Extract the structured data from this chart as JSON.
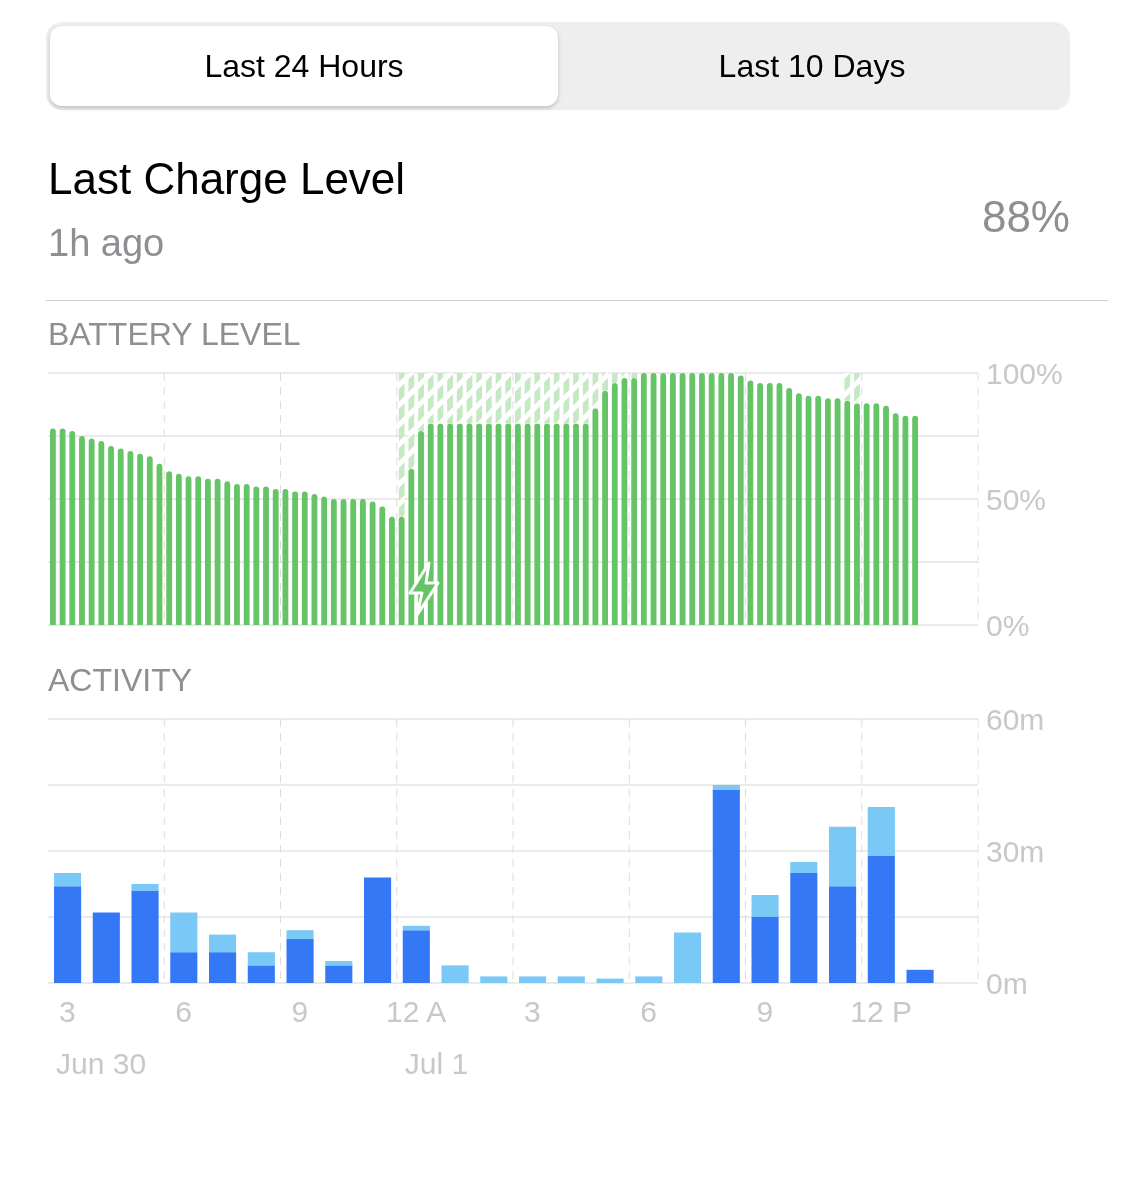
{
  "chart_data": [
    {
      "type": "other",
      "title": "Last Charge Level",
      "subtitle": "1h ago",
      "annotations": [
        "Last 24 Hours",
        "Last 10 Days",
        "88%"
      ]
    },
    {
      "type": "bar",
      "title": "BATTERY LEVEL",
      "stacked": true,
      "categories": [
        null,
        null,
        null,
        null,
        null,
        null,
        null,
        null,
        null,
        null,
        null,
        null,
        null,
        null,
        null,
        null,
        null,
        null,
        null,
        null,
        null,
        null,
        null,
        null,
        null,
        null,
        null,
        null,
        null,
        null,
        null,
        null,
        null,
        null,
        null,
        null,
        null,
        null,
        null,
        null,
        null,
        null,
        null,
        null,
        null,
        null,
        null,
        null,
        null,
        null,
        null,
        null,
        null,
        null,
        null,
        null,
        null,
        null,
        null,
        null,
        null,
        null,
        null,
        null,
        null,
        null,
        null,
        null,
        null,
        null,
        null,
        null,
        null,
        null,
        null,
        null,
        null,
        null,
        null,
        null,
        null,
        null,
        null,
        null,
        null,
        null,
        null,
        null,
        null,
        null,
        null,
        null,
        null,
        null,
        null,
        null
      ],
      "series": [
        {
          "color": "#65c466",
          "values": [
            78,
            78,
            77,
            75,
            74,
            73,
            71,
            70,
            69,
            68,
            67,
            64,
            61,
            60,
            59,
            59,
            58,
            58,
            57,
            56,
            56,
            55,
            55,
            54,
            54,
            53,
            53,
            52,
            51,
            50,
            50,
            50,
            50,
            49,
            47,
            43,
            43,
            62,
            77,
            80,
            80,
            80,
            80,
            80,
            80,
            80,
            80,
            80,
            80,
            80,
            80,
            80,
            80,
            80,
            80,
            80,
            86,
            93,
            96,
            98,
            98,
            100,
            100,
            100,
            100,
            100,
            100,
            100,
            100,
            100,
            100,
            99,
            97,
            96,
            96,
            96,
            94,
            92,
            91,
            91,
            90,
            90,
            89,
            88,
            88,
            88,
            87,
            84,
            83,
            83,
            null,
            null,
            null,
            null,
            null,
            null
          ]
        },
        {
          "color": "#c6e8c2",
          "values": [
            null,
            null,
            null,
            null,
            null,
            null,
            null,
            null,
            null,
            null,
            null,
            null,
            null,
            null,
            null,
            null,
            null,
            null,
            null,
            null,
            null,
            null,
            null,
            null,
            null,
            null,
            null,
            null,
            null,
            null,
            null,
            null,
            null,
            null,
            null,
            null,
            57,
            38,
            23,
            20,
            20,
            20,
            20,
            20,
            20,
            20,
            20,
            20,
            20,
            20,
            20,
            20,
            20,
            20,
            20,
            20,
            14,
            7,
            4,
            2,
            2,
            0,
            0,
            0,
            0,
            0,
            0,
            0,
            null,
            null,
            null,
            null,
            null,
            null,
            null,
            null,
            null,
            null,
            null,
            null,
            null,
            null,
            11,
            12,
            null,
            null,
            null,
            null,
            null,
            null,
            null,
            null,
            null,
            null,
            null,
            null
          ]
        }
      ],
      "ylim": [
        0,
        100
      ],
      "yticks": [
        {
          "value": 0,
          "label": "0%"
        },
        {
          "value": 25,
          "label": null
        },
        {
          "value": 50,
          "label": "50%"
        },
        {
          "value": 75,
          "label": null
        },
        {
          "value": 100,
          "label": "100%"
        }
      ],
      "grid": true,
      "tick_labels": "y"
    },
    {
      "type": "bar",
      "title": "ACTIVITY",
      "stacked": true,
      "categories": [
        "3",
        null,
        null,
        "6",
        null,
        null,
        "9",
        null,
        null,
        "12 A",
        null,
        null,
        "3",
        null,
        null,
        "6",
        null,
        null,
        "9",
        null,
        null,
        "12 P",
        null,
        null
      ],
      "series": [
        {
          "color": "#3478f6",
          "values": [
            22,
            16,
            21,
            7,
            7,
            4,
            10,
            4,
            24,
            12,
            0,
            0,
            0,
            0,
            0,
            0,
            0,
            44,
            15,
            25,
            22,
            29,
            3,
            null
          ]
        },
        {
          "color": "#7ac8f5",
          "values": [
            3,
            0,
            1.5,
            9,
            4,
            3,
            2,
            1,
            0,
            1,
            4,
            1.5,
            1.5,
            1.5,
            1,
            1.5,
            11.5,
            1,
            5,
            2.5,
            13.5,
            11,
            0,
            null
          ]
        }
      ],
      "ylim": [
        0,
        60
      ],
      "yticks": [
        {
          "value": 0,
          "label": "0m"
        },
        {
          "value": 15,
          "label": null
        },
        {
          "value": 30,
          "label": "30m"
        },
        {
          "value": 45,
          "label": null
        },
        {
          "value": 60,
          "label": "60m"
        }
      ],
      "grid": true,
      "annotations": [
        "Jun 30",
        "Jul 1"
      ]
    }
  ]
}
